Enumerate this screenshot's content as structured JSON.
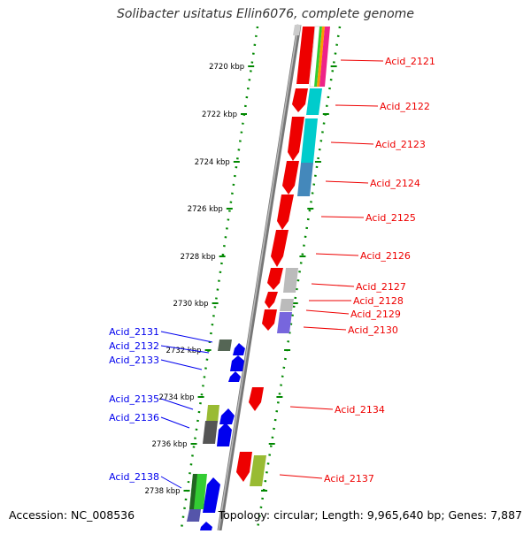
{
  "title": "Solibacter usitatus Ellin6076, complete genome",
  "footer": {
    "accession": "Accession: NC_008536",
    "topology": "Topology: circular; Length: 9,965,640 bp; Genes: 7,887"
  },
  "colors": {
    "forward_gene": "#ee0000",
    "reverse_gene": "#0000ee",
    "backbone": "#888888",
    "tick_dots": "#008800",
    "cog_colors": [
      "#00cccc",
      "#4488bb",
      "#bbbbbb",
      "#7766dd",
      "#556655",
      "#99bb33",
      "#33cc33",
      "#444444"
    ]
  },
  "ticks": [
    {
      "label": "2720 kbp"
    },
    {
      "label": "2722 kbp"
    },
    {
      "label": "2724 kbp"
    },
    {
      "label": "2726 kbp"
    },
    {
      "label": "2728 kbp"
    },
    {
      "label": "2730 kbp"
    },
    {
      "label": "2732 kbp"
    },
    {
      "label": "2734 kbp"
    },
    {
      "label": "2736 kbp"
    },
    {
      "label": "2738 kbp"
    }
  ],
  "forward_labels": [
    {
      "label": "Acid_2121"
    },
    {
      "label": "Acid_2122"
    },
    {
      "label": "Acid_2123"
    },
    {
      "label": "Acid_2124"
    },
    {
      "label": "Acid_2125"
    },
    {
      "label": "Acid_2126"
    },
    {
      "label": "Acid_2127"
    },
    {
      "label": "Acid_2128"
    },
    {
      "label": "Acid_2129"
    },
    {
      "label": "Acid_2130"
    },
    {
      "label": "Acid_2134"
    },
    {
      "label": "Acid_2137"
    }
  ],
  "reverse_labels": [
    {
      "label": "Acid_2131"
    },
    {
      "label": "Acid_2132"
    },
    {
      "label": "Acid_2133"
    },
    {
      "label": "Acid_2135"
    },
    {
      "label": "Acid_2136"
    },
    {
      "label": "Acid_2138"
    }
  ]
}
